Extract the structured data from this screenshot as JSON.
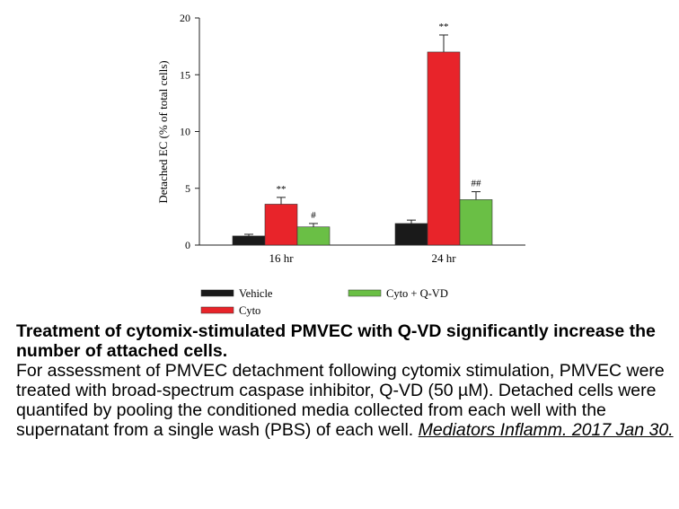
{
  "chart_data": {
    "type": "bar",
    "title": "",
    "xlabel": "",
    "ylabel": "Detached EC (% of total cells)",
    "ylim": [
      0,
      20
    ],
    "yticks": [
      "0",
      "5",
      "10",
      "15",
      "20"
    ],
    "categories": [
      "16 hr",
      "24 hr"
    ],
    "series": [
      {
        "name": "Vehicle",
        "color": "#1a1a1a",
        "values": [
          0.8,
          1.9
        ],
        "errors": [
          0.15,
          0.3
        ],
        "annotations": [
          "",
          ""
        ]
      },
      {
        "name": "Cyto",
        "color": "#e8242a",
        "values": [
          3.6,
          17.0
        ],
        "errors": [
          0.6,
          1.5
        ],
        "annotations": [
          "**",
          "**"
        ]
      },
      {
        "name": "Cyto + Q-VD",
        "color": "#6abf45",
        "values": [
          1.6,
          4.0
        ],
        "errors": [
          0.3,
          0.7
        ],
        "annotations": [
          "#",
          "##"
        ]
      }
    ],
    "legend_position": "bottom",
    "grid": false
  },
  "caption": {
    "title": "Treatment of cytomix-stimulated PMVEC with Q-VD significantly increase the number of attached cells.",
    "body": "For assessment of PMVEC detachment following cytomix stimulation, PMVEC were treated with broad-spectrum caspase inhibitor, Q-VD (50 µM). Detached cells were quantifed by pooling the conditioned media collected from each well with the supernatant from a single wash (PBS) of each well. ",
    "citation": "Mediators Inflamm. 2017 Jan 30."
  }
}
